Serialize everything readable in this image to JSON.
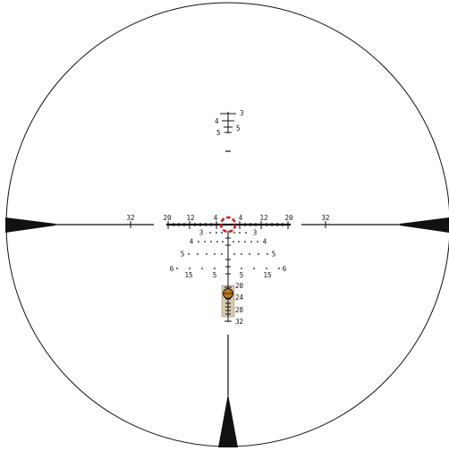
{
  "colors": {
    "background": "#ffffff",
    "ink": "#111111",
    "center_circle": "#d01c1c",
    "ballistic_box": "#d8c9ad",
    "ballistic_dot": "#c07a1f"
  },
  "labels": {
    "top_cluster": {
      "right_upper": "3",
      "left_mid": "4",
      "right_mid": "5",
      "left_lower": "5"
    },
    "horizontal_outer": {
      "left": "32",
      "right": "32"
    },
    "horizontal_row": [
      "20",
      "12",
      "4",
      "4",
      "12",
      "20"
    ],
    "row_1": {
      "left": "3",
      "right": "3"
    },
    "row_2": {
      "left": "4",
      "right": "4"
    },
    "row_3": {
      "left": "5",
      "right": "5"
    },
    "row_4": [
      "6",
      "15",
      "5",
      "5",
      "15",
      "6"
    ],
    "ballistic_scale": [
      "20",
      "24",
      "28",
      "32"
    ]
  }
}
